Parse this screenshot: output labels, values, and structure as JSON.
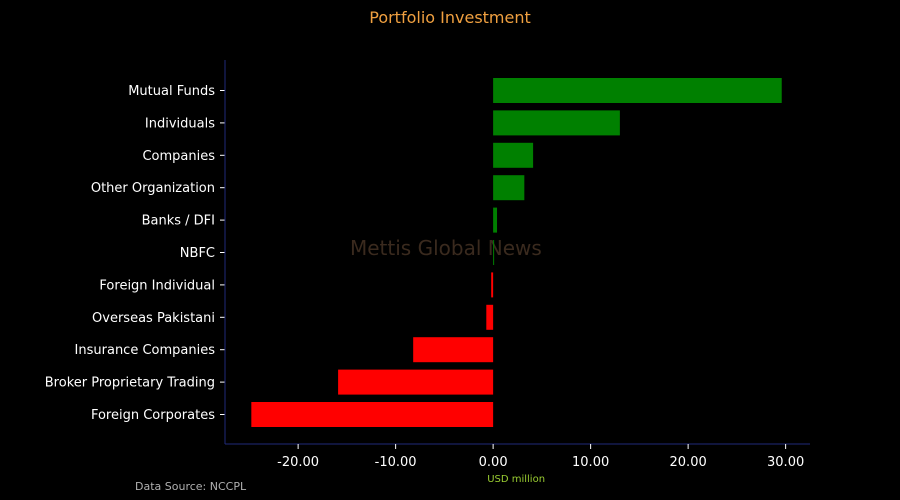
{
  "chart_data": {
    "type": "bar",
    "orientation": "horizontal",
    "title": "Portfolio Investment",
    "xlabel": "USD million",
    "ylabel": "",
    "categories": [
      "Mutual Funds",
      "Individuals",
      "Companies",
      "Other Organization",
      "Banks / DFI",
      "NBFC",
      "Foreign Individual",
      "Overseas Pakistani",
      "Insurance Companies",
      "Broker Proprietary Trading",
      "Foreign Corporates"
    ],
    "values": [
      29.6,
      13.0,
      4.1,
      3.2,
      0.4,
      0.1,
      -0.2,
      -0.7,
      -8.2,
      -15.9,
      -24.8
    ],
    "xlim": [
      -27.5,
      32.5
    ],
    "xticks": [
      -20,
      -10,
      0,
      10,
      20,
      30
    ],
    "xtick_labels": [
      "-20.00",
      "-10.00",
      "0.00",
      "10.00",
      "20.00",
      "30.00"
    ],
    "grid": false,
    "colors": {
      "positive": "#008000",
      "negative": "#ff0000",
      "axis": "#1f2a7a",
      "title": "#f0a040",
      "xlabel": "#9acd32"
    }
  },
  "watermark": "Mettis Global News",
  "source": "Data Source: NCCPL"
}
